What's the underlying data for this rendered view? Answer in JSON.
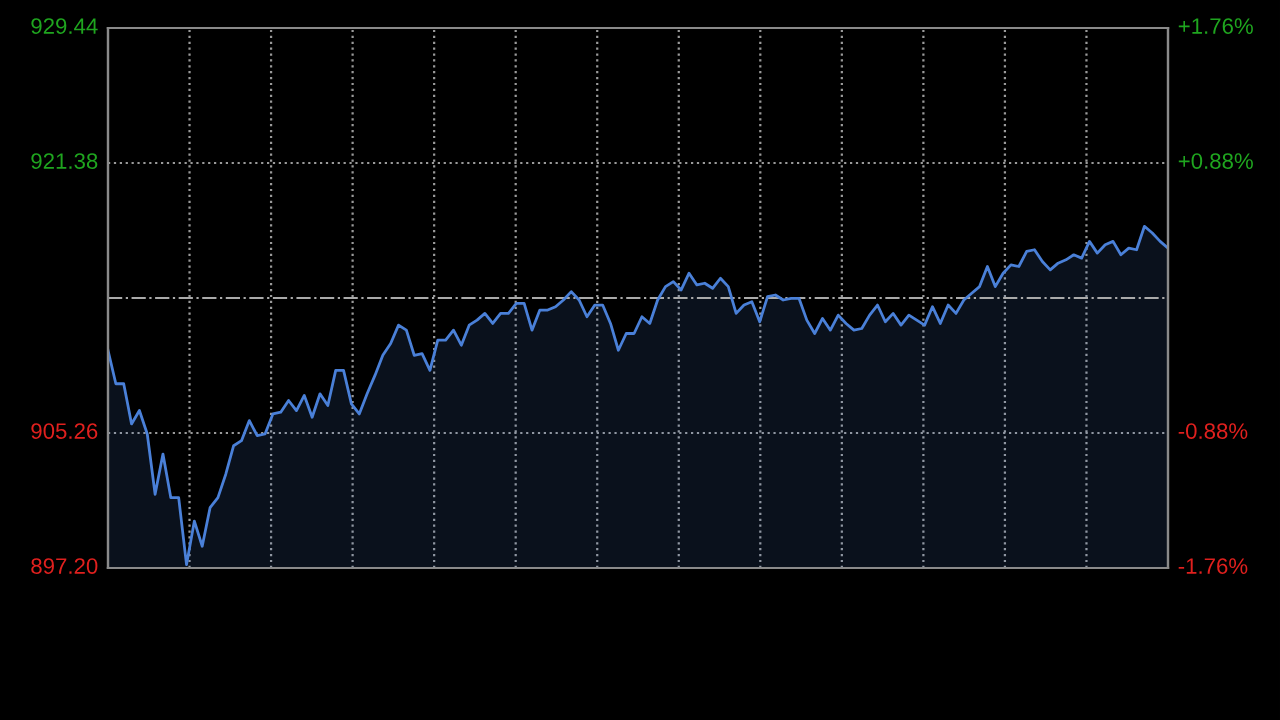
{
  "chart_data": [
    {
      "type": "area",
      "categories": [
        null,
        null,
        null,
        null,
        null,
        null,
        null,
        null,
        null,
        null,
        null,
        null,
        null,
        null,
        null,
        null,
        null,
        null,
        null,
        null,
        null,
        null,
        null,
        null,
        null,
        null,
        null,
        null,
        null,
        null,
        null,
        null,
        null,
        null,
        null,
        null,
        null,
        null,
        null,
        null,
        null,
        null,
        null,
        null,
        null,
        null,
        null,
        null,
        null,
        null,
        null,
        null,
        null,
        null,
        null,
        null,
        null,
        null,
        null,
        null,
        null,
        null,
        null,
        null,
        null,
        null,
        null,
        null,
        null,
        null,
        null,
        null,
        null,
        null,
        null,
        null,
        null,
        null,
        null,
        null,
        null,
        null,
        null,
        null,
        null,
        null,
        null,
        null,
        null,
        null,
        null,
        null,
        null,
        null,
        null,
        null,
        null,
        null,
        null,
        null,
        null,
        null,
        null,
        null,
        null,
        null,
        null,
        null,
        null,
        null,
        null,
        null,
        null,
        null,
        null,
        null,
        null,
        null,
        null,
        null,
        null,
        null,
        null,
        null,
        null,
        null,
        null,
        null,
        null,
        null,
        null,
        null,
        null,
        null,
        null,
        null
      ],
      "values": [
        910.2,
        908.2,
        908.2,
        905.8,
        906.6,
        905.2,
        901.6,
        904.0,
        901.4,
        901.4,
        897.4,
        900.0,
        898.5,
        900.8,
        901.4,
        902.8,
        904.5,
        904.8,
        906.0,
        905.1,
        905.2,
        906.4,
        906.5,
        907.2,
        906.6,
        907.5,
        906.2,
        907.6,
        906.9,
        909.0,
        909.0,
        907.0,
        906.4,
        907.6,
        908.7,
        909.9,
        910.6,
        911.7,
        911.4,
        909.9,
        910.0,
        909.0,
        910.8,
        910.8,
        911.4,
        910.5,
        911.7,
        912.0,
        912.4,
        911.8,
        912.4,
        912.4,
        913.0,
        913.0,
        911.4,
        912.6,
        912.6,
        912.8,
        913.2,
        913.7,
        913.2,
        912.2,
        912.9,
        912.9,
        911.8,
        910.2,
        911.2,
        911.2,
        912.2,
        911.8,
        913.2,
        914.0,
        914.3,
        913.8,
        914.8,
        914.1,
        914.2,
        913.9,
        914.5,
        914.0,
        912.4,
        912.9,
        913.1,
        911.9,
        913.4,
        913.5,
        913.2,
        913.3,
        913.3,
        912.0,
        911.2,
        912.1,
        911.4,
        912.3,
        911.8,
        911.4,
        911.5,
        912.3,
        912.9,
        911.9,
        912.4,
        911.7,
        912.3,
        912.0,
        911.7,
        912.8,
        911.8,
        912.9,
        912.4,
        913.2,
        913.6,
        914.0,
        915.2,
        914.0,
        914.8,
        915.3,
        915.2,
        916.1,
        916.2,
        915.5,
        915.0,
        915.4,
        915.6,
        915.9,
        915.7,
        916.7,
        916.0,
        916.5,
        916.7,
        915.9,
        916.3,
        916.2,
        917.6,
        917.2,
        916.7,
        916.3
      ],
      "color": "#4a80d8",
      "ylim": [
        897.2,
        929.44
      ],
      "yticks": [
        {
          "value": 897.2,
          "label": "897.20"
        },
        {
          "value": 905.26,
          "label": "905.26"
        },
        {
          "value": 921.38,
          "label": "921.38"
        },
        {
          "value": 929.44,
          "label": "929.44"
        }
      ],
      "y2lim": [
        -1.76,
        1.76
      ],
      "y2ticks": [
        {
          "value": -1.76,
          "label": "-1.76%"
        },
        {
          "value": -0.88,
          "label": "-0.88%"
        },
        {
          "value": 0.88,
          "label": "+0.88%"
        },
        {
          "value": 1.76,
          "label": "+1.76%"
        }
      ],
      "ref_lines": [
        {
          "axis": "y",
          "value": 913.32,
          "label": null,
          "color": "#aaaaaa",
          "line_style": "dashed"
        }
      ],
      "grid": true
    }
  ]
}
